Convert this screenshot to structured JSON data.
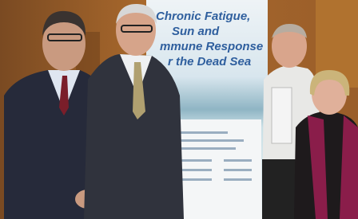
{
  "banner": {
    "lines": [
      "Chronic Fatigue,",
      "Sun and",
      "mmune Response",
      "r the Dead Sea"
    ]
  }
}
